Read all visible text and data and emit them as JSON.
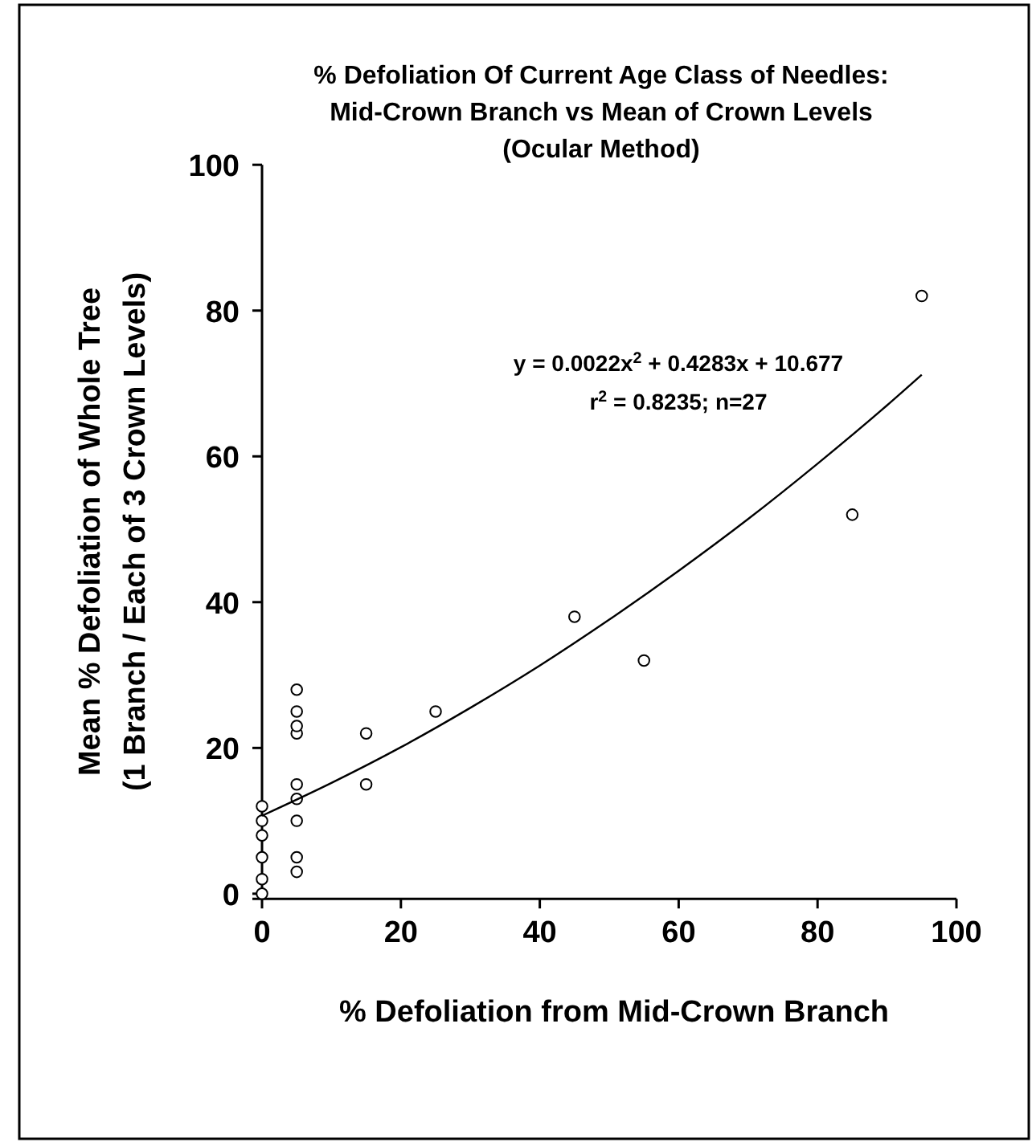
{
  "chart_data": {
    "type": "scatter",
    "title": "% Defoliation Of Current Age Class of Needles:\nMid-Crown Branch vs Mean of Crown Levels\n(Ocular Method)",
    "xlabel": "% Defoliation from Mid-Crown Branch",
    "ylabel": "Mean % Defoliation of Whole Tree\n(1 Branch / Each of 3 Crown Levels)",
    "xlim": [
      0,
      100
    ],
    "ylim": [
      -0.7,
      100
    ],
    "xticks": [
      0,
      20,
      40,
      60,
      80,
      100
    ],
    "yticks": [
      0,
      20,
      40,
      60,
      80,
      100
    ],
    "marker": "circle",
    "grid": false,
    "annotations": [
      "y = 0.0022x$^{2}$ + 0.4283x + 10.677",
      "r$^{2}$ = 0.8235; n=27"
    ],
    "series": [
      {
        "color": "#000000",
        "x": [
          0,
          0,
          0,
          0,
          0,
          0,
          5,
          5,
          5,
          5,
          5,
          5,
          5,
          5,
          5,
          15,
          15,
          25,
          45,
          55,
          85,
          95
        ],
        "values": [
          0,
          2,
          5,
          8,
          10,
          12,
          3,
          5,
          10,
          13,
          15,
          22,
          23,
          25,
          28,
          15,
          22,
          25,
          38,
          32,
          52,
          82
        ]
      },
      {
        "type": "line",
        "marker": "none",
        "color": "#000000",
        "x": [
          0,
          10,
          20,
          30,
          40,
          50,
          60,
          70,
          80,
          90,
          95
        ],
        "values": [
          10.7,
          15.2,
          20.1,
          25.5,
          31.3,
          37.6,
          44.3,
          51.4,
          59.0,
          67.0,
          71.2
        ]
      }
    ]
  }
}
